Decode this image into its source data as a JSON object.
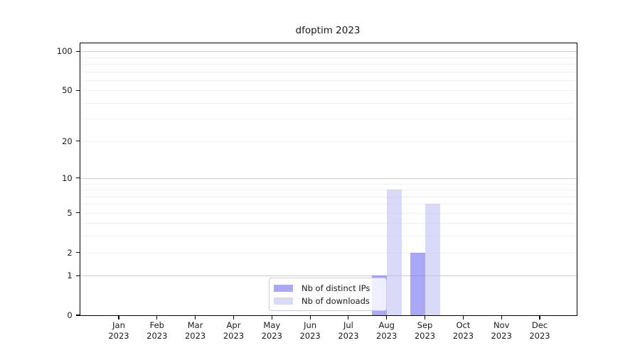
{
  "title": "dfoptim 2023",
  "chart_data": {
    "type": "bar",
    "title": "dfoptim 2023",
    "xlabel": "",
    "ylabel": "",
    "categories": [
      "Jan 2023",
      "Feb 2023",
      "Mar 2023",
      "Apr 2023",
      "May 2023",
      "Jun 2023",
      "Jul 2023",
      "Aug 2023",
      "Sep 2023",
      "Oct 2023",
      "Nov 2023",
      "Dec 2023"
    ],
    "series": [
      {
        "name": "Nb of distinct IPs",
        "color": "rgba(97,97,240,0.55)",
        "swatch_color": "#a8a8f7",
        "values": [
          0,
          0,
          0,
          0,
          0,
          0,
          0,
          1,
          2,
          0,
          0,
          0
        ]
      },
      {
        "name": "Nb of downloads",
        "color": "rgba(186,186,242,0.55)",
        "swatch_color": "#d9d9f8",
        "values": [
          0,
          0,
          0,
          0,
          0,
          0,
          0,
          8,
          6,
          0,
          0,
          0
        ]
      }
    ],
    "yscale": "log1p",
    "ylim": [
      0,
      115
    ],
    "yticks": [
      0,
      1,
      2,
      5,
      10,
      20,
      50,
      100
    ],
    "gridlines_major": [
      1,
      10,
      100
    ],
    "gridlines_minor": [
      2,
      3,
      4,
      5,
      6,
      7,
      8,
      9,
      20,
      30,
      40,
      50,
      60,
      70,
      80,
      90
    ],
    "grid": "on",
    "legend_position": "lower center",
    "colors": {
      "axis": "#000000",
      "grid_major": "#cccccc",
      "grid_minor": "#f0f0f0",
      "background": "#ffffff"
    }
  }
}
